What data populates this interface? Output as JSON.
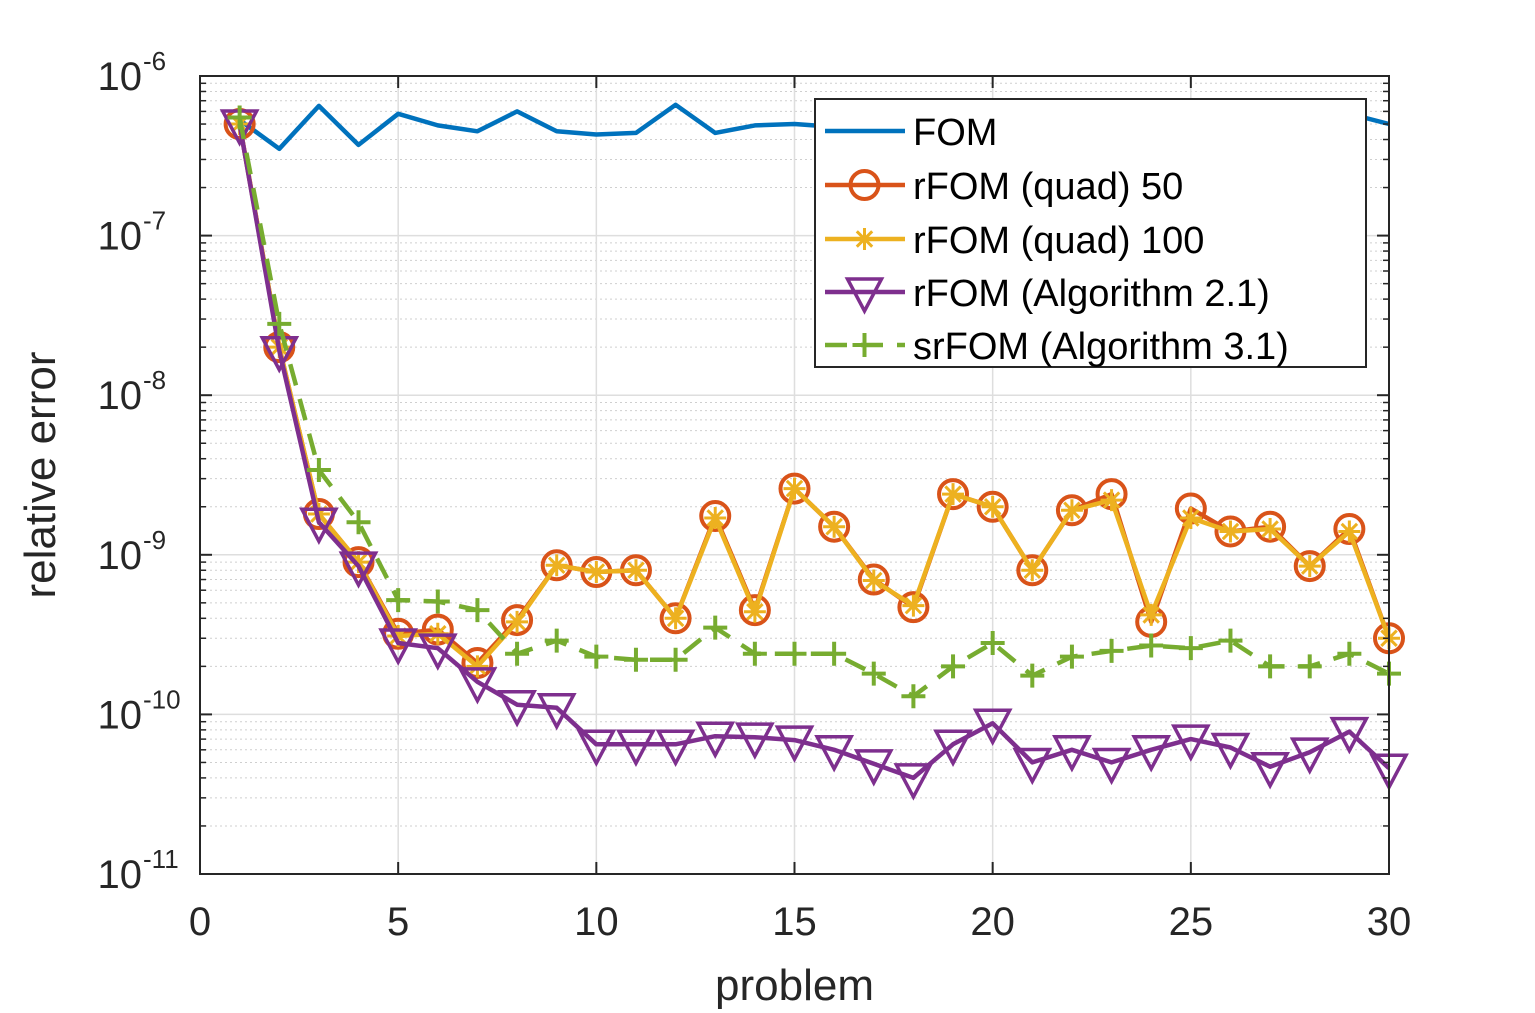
{
  "chart_data": {
    "type": "line",
    "xlabel": "problem",
    "ylabel": "relative error",
    "xlim": [
      0,
      30
    ],
    "ylim": [
      1e-11,
      1e-06
    ],
    "yscale": "log",
    "grid": true,
    "x_ticks": [
      "0",
      "5",
      "10",
      "15",
      "20",
      "25",
      "30"
    ],
    "y_ticks": [
      {
        "base": "10",
        "exp": "-11"
      },
      {
        "base": "10",
        "exp": "-10"
      },
      {
        "base": "10",
        "exp": "-9"
      },
      {
        "base": "10",
        "exp": "-8"
      },
      {
        "base": "10",
        "exp": "-7"
      },
      {
        "base": "10",
        "exp": "-6"
      }
    ],
    "legend_position": "top-right",
    "x": [
      1,
      2,
      3,
      4,
      5,
      6,
      7,
      8,
      9,
      10,
      11,
      12,
      13,
      14,
      15,
      16,
      17,
      18,
      19,
      20,
      21,
      22,
      23,
      24,
      25,
      26,
      27,
      28,
      29,
      30
    ],
    "series": [
      {
        "name": "FOM",
        "color": "#0072BD",
        "line": "solid",
        "marker": "none",
        "values": [
          5.3e-07,
          3.5e-07,
          6.5e-07,
          3.7e-07,
          5.8e-07,
          4.9e-07,
          4.5e-07,
          6e-07,
          4.5e-07,
          4.3e-07,
          4.4e-07,
          6.6e-07,
          4.4e-07,
          4.9e-07,
          5e-07,
          4.8e-07,
          4.8e-07,
          4.8e-07,
          4.8e-07,
          4.8e-07,
          4.8e-07,
          4.8e-07,
          4.8e-07,
          4.8e-07,
          4.8e-07,
          4.8e-07,
          4.8e-07,
          4.8e-07,
          5.8e-07,
          5e-07
        ]
      },
      {
        "name": "rFOM (quad) 50",
        "color": "#D95319",
        "line": "solid",
        "marker": "circle",
        "values": [
          5e-07,
          2e-08,
          1.8e-09,
          9e-10,
          3.2e-10,
          3.4e-10,
          2.1e-10,
          3.9e-10,
          8.6e-10,
          7.8e-10,
          8e-10,
          4e-10,
          1.75e-09,
          4.5e-10,
          2.6e-09,
          1.5e-09,
          7e-10,
          4.7e-10,
          2.4e-09,
          2e-09,
          8e-10,
          1.9e-09,
          2.4e-09,
          3.8e-10,
          1.95e-09,
          1.4e-09,
          1.5e-09,
          8.5e-10,
          1.45e-09,
          3e-10
        ]
      },
      {
        "name": "rFOM (quad) 100",
        "color": "#EDB120",
        "line": "solid",
        "marker": "asterisk",
        "values": [
          5e-07,
          2e-08,
          1.8e-09,
          9e-10,
          3.1e-10,
          3.2e-10,
          2e-10,
          3.8e-10,
          8.6e-10,
          7.8e-10,
          8e-10,
          4e-10,
          1.7e-09,
          4.4e-10,
          2.6e-09,
          1.5e-09,
          6.9e-10,
          4.8e-10,
          2.4e-09,
          2e-09,
          8e-10,
          1.9e-09,
          2.2e-09,
          4.2e-10,
          1.7e-09,
          1.4e-09,
          1.45e-09,
          8.5e-10,
          1.4e-09,
          3e-10
        ]
      },
      {
        "name": "rFOM (Algorithm 2.1)",
        "color": "#7E2F8E",
        "line": "solid",
        "marker": "triangle-down",
        "values": [
          5e-07,
          1.9e-08,
          1.6e-09,
          8.5e-10,
          2.8e-10,
          2.6e-10,
          1.6e-10,
          1.15e-10,
          1.1e-10,
          6.5e-11,
          6.5e-11,
          6.5e-11,
          7.3e-11,
          7.2e-11,
          6.9e-11,
          6e-11,
          4.9e-11,
          4e-11,
          6.5e-11,
          8.8e-11,
          5e-11,
          6e-11,
          5e-11,
          6e-11,
          7e-11,
          6.2e-11,
          4.7e-11,
          5.8e-11,
          7.8e-11,
          4.6e-11
        ]
      },
      {
        "name": "srFOM (Algorithm 3.1)",
        "color": "#77AC30",
        "line": "dashed",
        "marker": "plus",
        "values": [
          5.5e-07,
          2.8e-08,
          3.4e-09,
          1.6e-09,
          5.2e-10,
          5.1e-10,
          4.5e-10,
          2.4e-10,
          2.9e-10,
          2.3e-10,
          2.2e-10,
          2.2e-10,
          3.5e-10,
          2.4e-10,
          2.4e-10,
          2.4e-10,
          1.8e-10,
          1.3e-10,
          2e-10,
          2.8e-10,
          1.75e-10,
          2.3e-10,
          2.5e-10,
          2.7e-10,
          2.6e-10,
          2.9e-10,
          2e-10,
          2e-10,
          2.4e-10,
          1.8e-10
        ]
      }
    ]
  }
}
